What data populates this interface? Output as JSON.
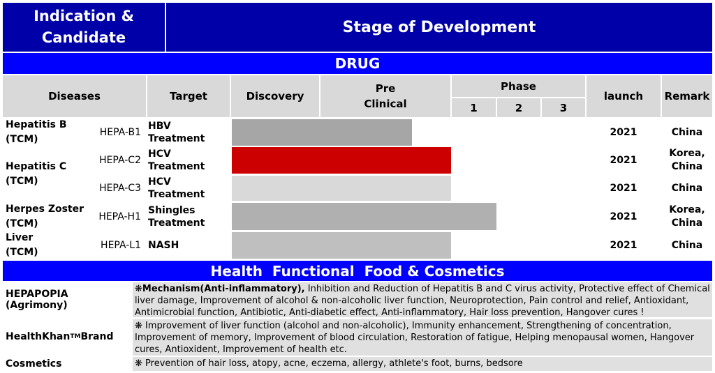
{
  "header": {
    "indication": "Indication &\nCandidate",
    "stage": "Stage of Development"
  },
  "drug_band": "DRUG",
  "columns": {
    "diseases": "Diseases",
    "target": "Target",
    "discovery": "Discovery",
    "preclinical": "Pre\nClinical",
    "phase": "Phase",
    "phase1": "1",
    "phase2": "2",
    "phase3": "3",
    "launch": "launch",
    "remark": "Remark"
  },
  "diseases": [
    {
      "name": "Hepatitis B\n(TCM)"
    },
    {
      "name": "Hepatitis C\n(TCM)"
    },
    {
      "name": "Herpes Zoster\n(TCM)"
    },
    {
      "name": "Liver\n(TCM)"
    }
  ],
  "rows": [
    {
      "code": "HEPA-B1",
      "target": "HBV Treatment",
      "launch": "2021",
      "remark": "China",
      "bar_color": "#a6a6a6",
      "progress_stage": 1.7
    },
    {
      "code": "HEPA-C2",
      "target": "HCV Treatment",
      "launch": "2021",
      "remark": "Korea,\nChina",
      "bar_color": "#cc0000",
      "progress_stage": 2.0
    },
    {
      "code": "HEPA-C3",
      "target": "HCV Treatment",
      "launch": "2021",
      "remark": "China",
      "bar_color": "#d9d9d9",
      "progress_stage": 2.0
    },
    {
      "code": "HEPA-H1",
      "target": "Shingles\nTreatment",
      "launch": "2021",
      "remark": "Korea,\nChina",
      "bar_color": "#b0b0b0",
      "progress_stage": 3.0
    },
    {
      "code": "HEPA-L1",
      "target": "NASH",
      "launch": "2021",
      "remark": "China",
      "bar_color": "#bfbfbf",
      "progress_stage": 2.0
    }
  ],
  "hff_band": "Health  Functional  Food & Cosmetics",
  "hff": [
    {
      "name": "HEPAPOPIA (Agrimony)",
      "bullet": "❋",
      "lead": "Mechanism(Anti-inflammatory),",
      "text": " Inhibition and Reduction of Hepatitis B and C virus activity, Protective effect of Chemical liver damage, Improvement of alcohol & non-alcoholic liver function, Neuroprotection, Pain control and relief, Antioxidant, Antimicrobial function, Antibiotic, Anti-diabetic effect, Anti-inflammatory, Hair loss prevention, Hangover cures !"
    },
    {
      "name": "HealthKhan",
      "tm": "TM",
      "name_suffix": " Brand",
      "bullet": "❋",
      "lead": "",
      "text": " Improvement of liver function (alcohol and non-alcoholic), Immunity enhancement, Strengthening of concentration, Improvement of memory, Improvement of blood circulation, Restoration of fatigue, Helping menopausal women, Hangover cures, Antioxident, Improvement of health etc."
    },
    {
      "name": "Cosmetics",
      "bullet": "❋",
      "lead": "",
      "text": " Prevention of hair loss, atopy, acne, eczema, allergy, athlete's foot, burns, bedsore"
    }
  ]
}
